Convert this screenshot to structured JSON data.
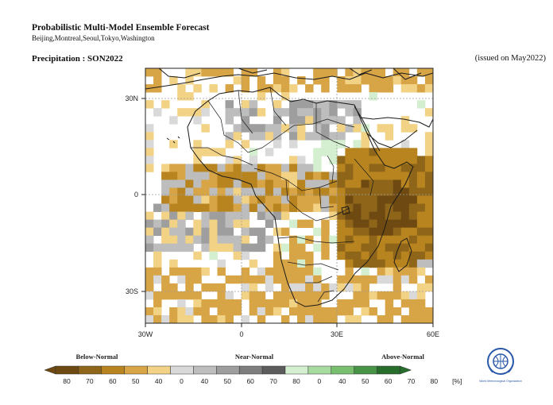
{
  "header": {
    "title": "Probabilistic Multi-Model Ensemble Forecast",
    "centers": "Beijing,Montreal,Seoul,Tokyo,Washington",
    "variable": "Precipitation : SON2022",
    "issued": "(issued on May2022)"
  },
  "map": {
    "lat_labels": [
      "30N",
      "0",
      "30S"
    ],
    "lon_labels": [
      "30W",
      "0",
      "30E",
      "60E"
    ]
  },
  "colorbar": {
    "groups": [
      "Below-Normal",
      "Near-Normal",
      "Above-Normal"
    ],
    "tick_labels": [
      "80",
      "70",
      "60",
      "50",
      "40",
      "0",
      "40",
      "50",
      "60",
      "70",
      "80",
      "0",
      "40",
      "50",
      "60",
      "70",
      "80",
      "[%]"
    ],
    "colors": {
      "below": [
        "#6e4a12",
        "#8f6619",
        "#b8841f",
        "#d8a546",
        "#f2d285"
      ],
      "near": [
        "#d9d9d9",
        "#bdbdbd",
        "#9e9e9e",
        "#7d7d7d",
        "#5c5c5c"
      ],
      "above": [
        "#d4efcf",
        "#a8dba0",
        "#78bf70",
        "#479446",
        "#276d2b"
      ]
    }
  },
  "logo": {
    "text": "World Meteorological Organization"
  }
}
